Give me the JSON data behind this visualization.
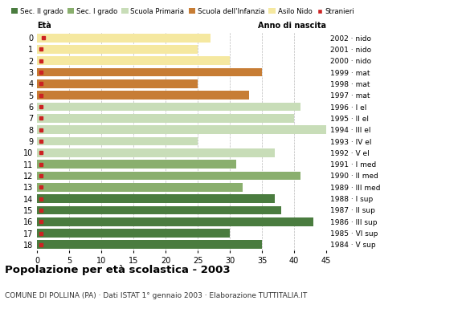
{
  "ages": [
    0,
    1,
    2,
    3,
    4,
    5,
    6,
    7,
    8,
    9,
    10,
    11,
    12,
    13,
    14,
    15,
    16,
    17,
    18
  ],
  "right_labels": [
    "2002 · nido",
    "2001 · nido",
    "2000 · nido",
    "1999 · mat",
    "1998 · mat",
    "1997 · mat",
    "1996 · I el",
    "1995 · II el",
    "1994 · III el",
    "1993 · IV el",
    "1992 · V el",
    "1991 · I med",
    "1990 · II med",
    "1989 · III med",
    "1988 · I sup",
    "1987 · II sup",
    "1986 · III sup",
    "1985 · VI sup",
    "1984 · V sup"
  ],
  "bar_values": [
    27,
    25,
    30,
    35,
    25,
    33,
    41,
    40,
    45,
    25,
    37,
    31,
    41,
    32,
    37,
    38,
    43,
    30,
    35
  ],
  "bar_colors": [
    "#f5e8a0",
    "#f5e8a0",
    "#f5e8a0",
    "#c77d35",
    "#c77d35",
    "#c77d35",
    "#c8ddb8",
    "#c8ddb8",
    "#c8ddb8",
    "#c8ddb8",
    "#c8ddb8",
    "#8aaf6e",
    "#8aaf6e",
    "#8aaf6e",
    "#4a7c3f",
    "#4a7c3f",
    "#4a7c3f",
    "#4a7c3f",
    "#4a7c3f"
  ],
  "stranieri_marker_ages": [
    1,
    2,
    3,
    4,
    5,
    6,
    7,
    8,
    9,
    10,
    11,
    12,
    13,
    14,
    15,
    16,
    17,
    18
  ],
  "stranieri_color": "#cc2222",
  "legend_labels": [
    "Sec. II grado",
    "Sec. I grado",
    "Scuola Primaria",
    "Scuola dell'Infanzia",
    "Asilo Nido",
    "Stranieri"
  ],
  "legend_colors": [
    "#4a7c3f",
    "#8aaf6e",
    "#c8ddb8",
    "#c77d35",
    "#f5e8a0",
    "#cc2222"
  ],
  "title": "Popolazione per età scolastica - 2003",
  "subtitle": "COMUNE DI POLLINA (PA) · Dati ISTAT 1° gennaio 2003 · Elaborazione TUTTITALIA.IT",
  "eta_label": "Età",
  "anno_label": "Anno di nascita",
  "xlim": [
    0,
    45
  ],
  "xticks": [
    0,
    5,
    10,
    15,
    20,
    25,
    30,
    35,
    40,
    45
  ],
  "grid_color": "#bbbbbb",
  "bg_color": "#ffffff",
  "bar_height": 0.75
}
